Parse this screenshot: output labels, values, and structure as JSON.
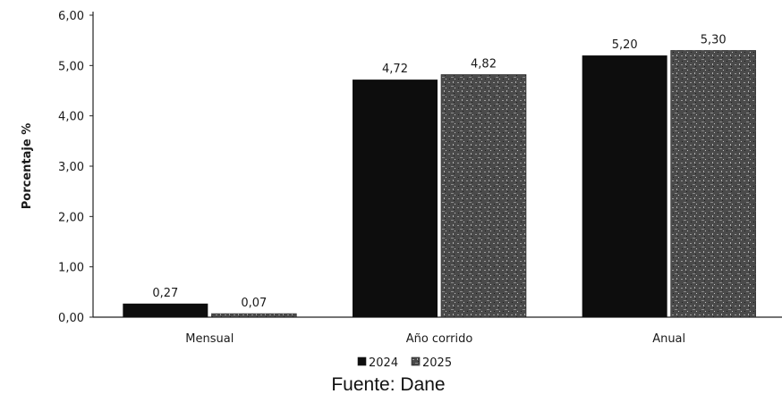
{
  "chart_data": {
    "type": "bar",
    "categories": [
      "Mensual",
      "Año corrido",
      "Anual"
    ],
    "series": [
      {
        "name": "2024",
        "values": [
          0.27,
          4.72,
          5.2
        ],
        "labels": [
          "0,27",
          "4,72",
          "5,20"
        ],
        "color": "#0d0d0d"
      },
      {
        "name": "2025",
        "values": [
          0.07,
          4.82,
          5.3
        ],
        "labels": [
          "0,07",
          "4,82",
          "5,30"
        ],
        "color": "#5a5a5a"
      }
    ],
    "ylabel": "Porcentaje %",
    "ylim": [
      0,
      6
    ],
    "yticks": [
      "0,00",
      "1,00",
      "2,00",
      "3,00",
      "4,00",
      "5,00",
      "6,00"
    ],
    "grid": false,
    "legend_position": "bottom",
    "source": "Fuente: Dane"
  }
}
